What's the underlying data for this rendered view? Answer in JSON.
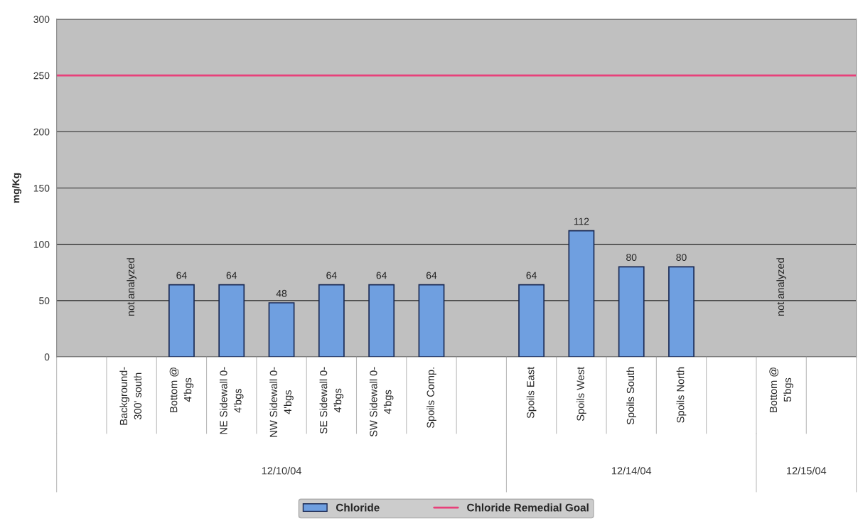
{
  "chart_data": {
    "type": "bar",
    "ylabel": "mg/Kg",
    "categories": [
      null,
      "Background-\n300' south",
      "Bottom @\n4'bgs",
      "NE Sidewall 0-\n4'bgs",
      "NW Sidewall 0-\n4'bgs",
      "SE Sidewall 0-\n4'bgs",
      "SW Sidewall 0-\n4'bgs",
      "Spoils Comp.",
      null,
      "Spoils East",
      "Spoils West",
      "Spoils South",
      "Spoils North",
      null,
      "Bottom @\n5'bgs",
      null
    ],
    "series": [
      {
        "name": "Chloride",
        "color": "#6f9fe0",
        "values": [
          null,
          null,
          64,
          64,
          48,
          64,
          64,
          64,
          null,
          64,
          112,
          80,
          80,
          null,
          null,
          null
        ]
      }
    ],
    "ref_lines": [
      {
        "axis": "y",
        "value": 250,
        "label": "Chloride Remedial Goal",
        "color": "#e8407a",
        "line_style": "solid"
      }
    ],
    "ylim": [
      0,
      300
    ],
    "yticks": [
      0,
      50,
      100,
      150,
      200,
      250,
      300
    ],
    "grid": "y",
    "legend": "bottom",
    "data_labels": true,
    "annotations": [
      "not analyzed",
      "not analyzed",
      "12/10/04",
      "12/14/04",
      "12/15/04"
    ]
  }
}
